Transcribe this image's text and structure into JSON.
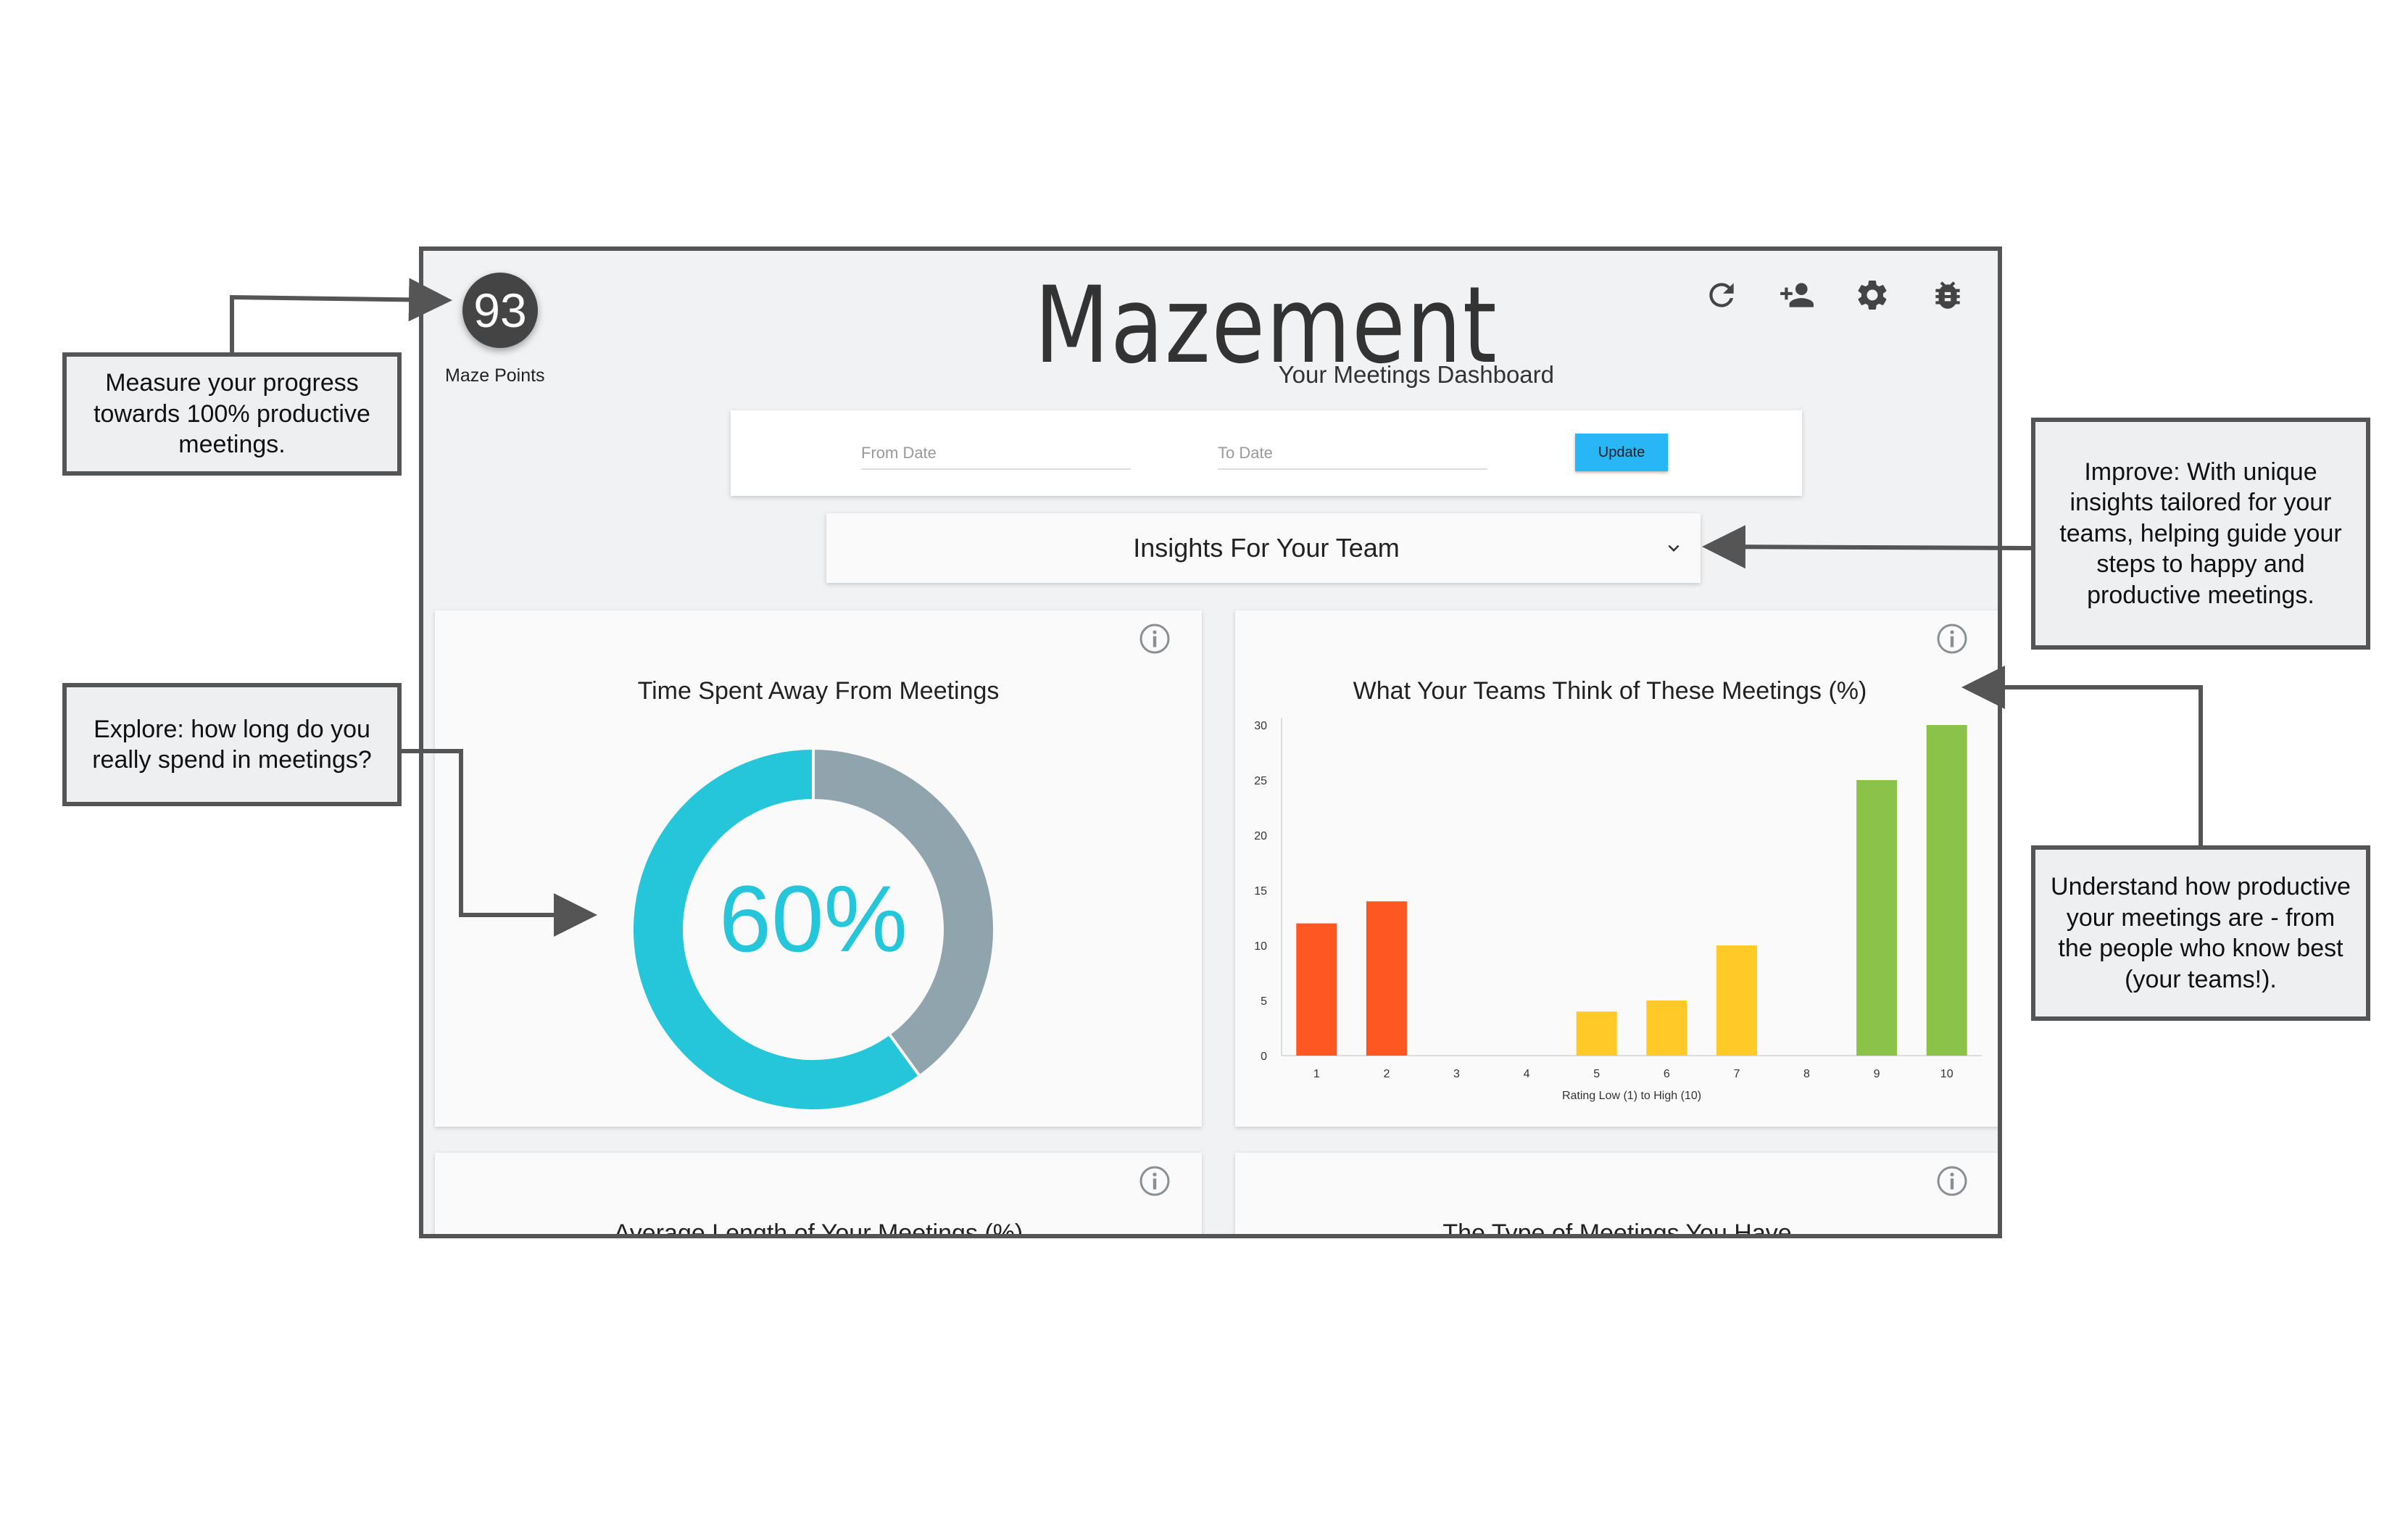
{
  "app": {
    "title": "Mazement",
    "subtitle": "Your Meetings Dashboard",
    "points_value": "93",
    "points_label": "Maze Points"
  },
  "toolbar": {
    "icons": [
      "refresh-icon",
      "add-user-icon",
      "gear-icon",
      "bug-icon"
    ]
  },
  "date_filter": {
    "from_placeholder": "From Date",
    "to_placeholder": "To Date",
    "update_label": "Update"
  },
  "insights_select": {
    "selected": "Insights For Your Team"
  },
  "cards": {
    "time_away": {
      "title": "Time Spent Away From Meetings"
    },
    "team_opinion": {
      "title": "What Your Teams Think of These Meetings (%)"
    },
    "avg_length": {
      "title": "Average Length of Your Meetings (%)"
    },
    "meeting_types": {
      "title": "The Type of Meetings You Have"
    }
  },
  "chart_data": [
    {
      "type": "pie",
      "variant": "donut",
      "center_label": "60%",
      "slices": [
        {
          "value": 60,
          "color": "#26c6da"
        },
        {
          "value": 40,
          "color": "#90a4ae"
        }
      ]
    },
    {
      "type": "bar",
      "title": "What Your Teams Think of These Meetings (%)",
      "xlabel": "Rating Low (1) to High (10)",
      "ylabel": "",
      "categories": [
        "1",
        "2",
        "3",
        "4",
        "5",
        "6",
        "7",
        "8",
        "9",
        "10"
      ],
      "values": [
        12,
        14,
        0,
        0,
        4,
        5,
        10,
        0,
        25,
        30
      ],
      "colors": [
        "#ff5722",
        "#ff5722",
        "#ff5722",
        "#ffca28",
        "#ffca28",
        "#ffca28",
        "#ffca28",
        "#8bc34a",
        "#8bc34a",
        "#8bc34a"
      ],
      "yticks": [
        "0",
        "5",
        "10",
        "15",
        "20",
        "25",
        "30"
      ],
      "ylim": [
        0,
        30
      ],
      "grid": false,
      "legend": "none"
    }
  ],
  "annotations": {
    "progress": "Measure your progress towards 100% productive meetings.",
    "explore": "Explore: how long do you really spend in meetings?",
    "improve": "Improve: With unique insights tailored for your teams, helping guide your steps to happy and productive meetings.",
    "understand": "Understand how productive your meetings are - from the people who know best (your teams!)."
  }
}
